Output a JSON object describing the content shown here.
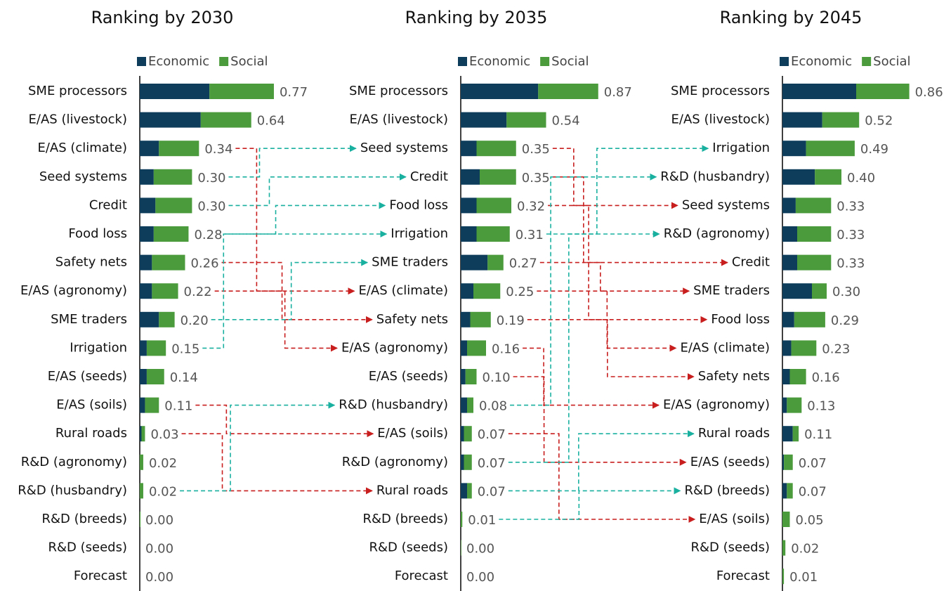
{
  "chart_data": [
    {
      "type": "bar",
      "orientation": "horizontal",
      "stacked": true,
      "title": "Ranking by 2030",
      "categories": [
        "SME processors",
        "E/AS (livestock)",
        "E/AS (climate)",
        "Seed systems",
        "Credit",
        "Food loss",
        "Safety nets",
        "E/AS (agronomy)",
        "SME traders",
        "Irrigation",
        "E/AS (seeds)",
        "E/AS (soils)",
        "Rural roads",
        "R&D (agronomy)",
        "R&D (husbandry)",
        "R&D (breeds)",
        "R&D (seeds)",
        "Forecast"
      ],
      "series": [
        {
          "name": "Economic",
          "color": "#0d3d5b",
          "values": [
            0.4,
            0.35,
            0.11,
            0.08,
            0.09,
            0.08,
            0.07,
            0.07,
            0.11,
            0.04,
            0.04,
            0.03,
            0.01,
            0,
            0,
            0,
            0,
            0
          ]
        },
        {
          "name": "Social",
          "color": "#4b9a3b",
          "values": [
            0.37,
            0.29,
            0.23,
            0.22,
            0.21,
            0.2,
            0.19,
            0.15,
            0.09,
            0.11,
            0.1,
            0.08,
            0.02,
            0.02,
            0.02,
            0.004,
            0,
            0
          ]
        }
      ],
      "totals": [
        0.77,
        0.64,
        0.34,
        0.3,
        0.3,
        0.28,
        0.26,
        0.22,
        0.2,
        0.15,
        0.14,
        0.11,
        0.03,
        0.02,
        0.02,
        0,
        0,
        0
      ],
      "value_labels": [
        "0.77",
        "0.64",
        "0.34",
        "0.30",
        "0.30",
        "0.28",
        "0.26",
        "0.22",
        "0.20",
        "0.15",
        "0.14",
        "0.11",
        "0.03",
        "0.02",
        "0.02",
        "0.00",
        "0.00",
        "0.00"
      ]
    },
    {
      "type": "bar",
      "orientation": "horizontal",
      "stacked": true,
      "title": "Ranking by 2035",
      "categories": [
        "SME processors",
        "E/AS (livestock)",
        "Seed systems",
        "Credit",
        "Food loss",
        "Irrigation",
        "SME traders",
        "E/AS (climate)",
        "Safety nets",
        "E/AS (agronomy)",
        "E/AS (seeds)",
        "R&D (husbandry)",
        "E/AS (soils)",
        "R&D (agronomy)",
        "Rural roads",
        "R&D (breeds)",
        "R&D (seeds)",
        "Forecast"
      ],
      "series": [
        {
          "name": "Economic",
          "color": "#0d3d5b",
          "values": [
            0.49,
            0.29,
            0.1,
            0.12,
            0.1,
            0.1,
            0.17,
            0.08,
            0.06,
            0.04,
            0.03,
            0.04,
            0.02,
            0.02,
            0.04,
            0,
            0,
            0
          ]
        },
        {
          "name": "Social",
          "color": "#4b9a3b",
          "values": [
            0.38,
            0.25,
            0.25,
            0.23,
            0.22,
            0.21,
            0.1,
            0.17,
            0.13,
            0.12,
            0.07,
            0.04,
            0.05,
            0.05,
            0.03,
            0.01,
            0.003,
            0
          ]
        }
      ],
      "totals": [
        0.87,
        0.54,
        0.35,
        0.35,
        0.32,
        0.31,
        0.27,
        0.25,
        0.19,
        0.16,
        0.1,
        0.08,
        0.07,
        0.07,
        0.07,
        0.01,
        0,
        0
      ],
      "value_labels": [
        "0.87",
        "0.54",
        "0.35",
        "0.35",
        "0.32",
        "0.31",
        "0.27",
        "0.25",
        "0.19",
        "0.16",
        "0.10",
        "0.08",
        "0.07",
        "0.07",
        "0.07",
        "0.01",
        "0.00",
        "0.00"
      ]
    },
    {
      "type": "bar",
      "orientation": "horizontal",
      "stacked": true,
      "title": "Ranking by 2045",
      "categories": [
        "SME processors",
        "E/AS (livestock)",
        "Irrigation",
        "R&D (husbandry)",
        "Seed systems",
        "R&D (agronomy)",
        "Credit",
        "SME traders",
        "Food loss",
        "E/AS (climate)",
        "Safety nets",
        "E/AS (agronomy)",
        "Rural roads",
        "E/AS (seeds)",
        "R&D (breeds)",
        "E/AS (soils)",
        "R&D (seeds)",
        "Forecast"
      ],
      "series": [
        {
          "name": "Economic",
          "color": "#0d3d5b",
          "values": [
            0.5,
            0.27,
            0.16,
            0.22,
            0.09,
            0.1,
            0.1,
            0.2,
            0.08,
            0.06,
            0.05,
            0.03,
            0.07,
            0.01,
            0.03,
            0,
            0,
            0
          ]
        },
        {
          "name": "Social",
          "color": "#4b9a3b",
          "values": [
            0.36,
            0.25,
            0.33,
            0.18,
            0.24,
            0.23,
            0.23,
            0.1,
            0.21,
            0.17,
            0.11,
            0.1,
            0.04,
            0.06,
            0.04,
            0.05,
            0.02,
            0.01
          ]
        }
      ],
      "totals": [
        0.86,
        0.52,
        0.49,
        0.4,
        0.33,
        0.33,
        0.33,
        0.3,
        0.29,
        0.23,
        0.16,
        0.13,
        0.11,
        0.07,
        0.07,
        0.05,
        0.02,
        0.01
      ],
      "value_labels": [
        "0.86",
        "0.52",
        "0.49",
        "0.40",
        "0.33",
        "0.33",
        "0.33",
        "0.30",
        "0.29",
        "0.23",
        "0.16",
        "0.13",
        "0.11",
        "0.07",
        "0.07",
        "0.05",
        "0.02",
        "0.01"
      ]
    }
  ]
}
